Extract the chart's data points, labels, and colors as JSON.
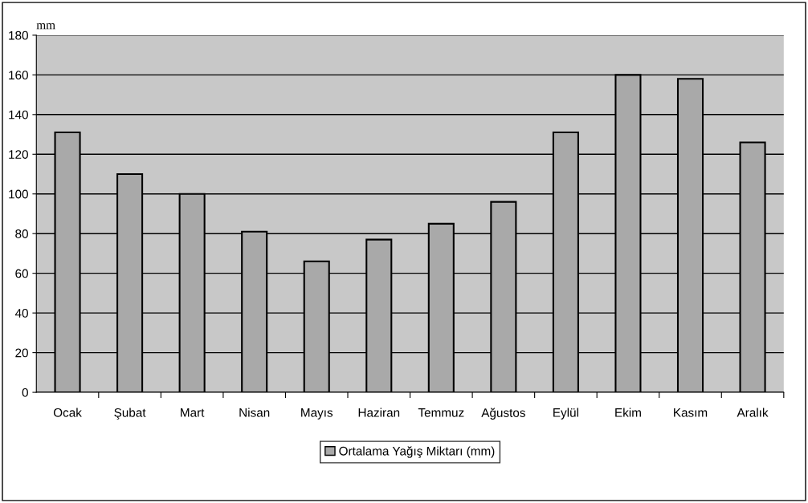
{
  "chart_data": {
    "type": "bar",
    "ylabel": "mm",
    "categories": [
      "Ocak",
      "Şubat",
      "Mart",
      "Nisan",
      "Mayıs",
      "Haziran",
      "Temmuz",
      "Ağustos",
      "Eylül",
      "Ekim",
      "Kasım",
      "Aralık"
    ],
    "series": [
      {
        "name": "Ortalama Yağış Miktarı (mm)",
        "color": "#a9a9a9",
        "values": [
          131,
          110,
          100,
          81,
          66,
          77,
          85,
          96,
          131,
          160,
          158,
          126
        ]
      }
    ],
    "ylim": [
      0,
      180
    ],
    "yticks": [
      0,
      20,
      40,
      60,
      80,
      100,
      120,
      140,
      160,
      180
    ],
    "grid": "y",
    "legend": "bottom"
  }
}
